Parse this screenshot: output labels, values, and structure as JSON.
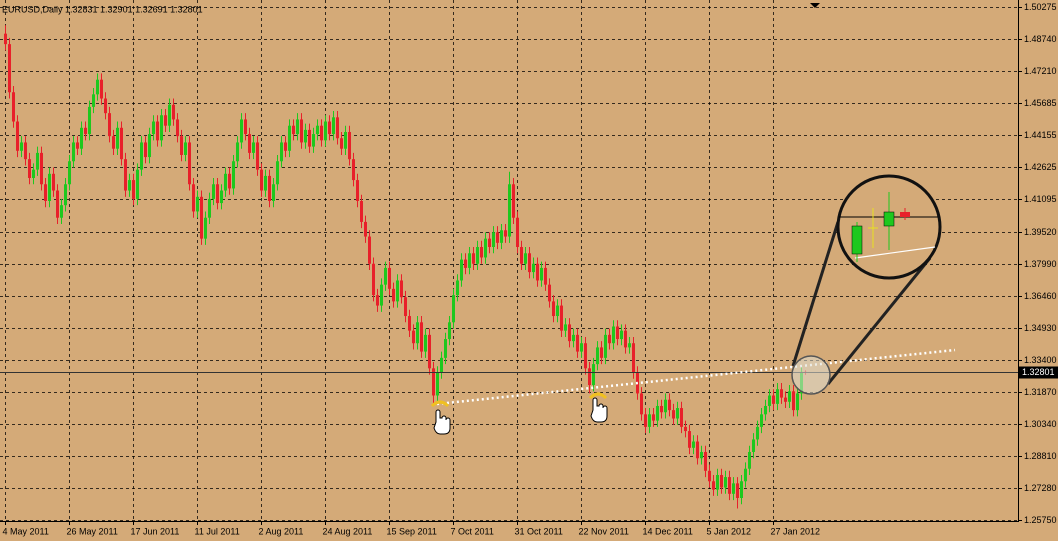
{
  "chart_data": {
    "type": "candlestick",
    "title": "EURUSD,Daily  1.32831 1.32901 1.32691 1.32801",
    "up_color": "#1ec81e",
    "down_color": "#e8202a",
    "grid": true,
    "xlim": [
      -1.25,
      253.25
    ],
    "xticks": [
      {
        "value": 0,
        "label": "4 May 2011"
      },
      {
        "value": 16,
        "label": "26 May 2011"
      },
      {
        "value": 32,
        "label": "17 Jun 2011"
      },
      {
        "value": 48,
        "label": "11 Jul 2011"
      },
      {
        "value": 64,
        "label": "2 Aug 2011"
      },
      {
        "value": 80,
        "label": "24 Aug 2011"
      },
      {
        "value": 96,
        "label": "15 Sep 2011"
      },
      {
        "value": 112,
        "label": "7 Oct 2011"
      },
      {
        "value": 128,
        "label": "31 Oct 2011"
      },
      {
        "value": 144,
        "label": "22 Nov 2011"
      },
      {
        "value": 160,
        "label": "14 Dec 2011"
      },
      {
        "value": 176,
        "label": "5 Jan 2012"
      },
      {
        "value": 192,
        "label": "27 Jan 2012"
      }
    ],
    "ylim": [
      1.257,
      1.5061
    ],
    "yticks": [
      1.50275,
      {
        "value": 1.4874,
        "label": "1.48740"
      },
      {
        "value": 1.4721,
        "label": "1.47210"
      },
      1.45685,
      1.44155,
      1.42625,
      1.41095,
      {
        "value": 1.3952,
        "label": "1.39520"
      },
      {
        "value": 1.3799,
        "label": "1.37990"
      },
      {
        "value": 1.3646,
        "label": "1.36460"
      },
      {
        "value": 1.3493,
        "label": "1.34930"
      },
      {
        "value": 1.334,
        "label": "1.33400"
      },
      {
        "value": 1.3187,
        "label": "1.31870"
      },
      {
        "value": 1.3034,
        "label": "1.30340"
      },
      {
        "value": 1.2881,
        "label": "1.28810"
      },
      {
        "value": 1.2728,
        "label": "1.27280"
      },
      {
        "value": 1.2575,
        "label": "1.25750"
      }
    ],
    "last_price": {
      "value": 1.32801,
      "label": "1.32801"
    },
    "open": [
      1.49,
      1.485,
      1.462,
      1.448,
      1.434,
      1.438,
      1.43,
      1.421,
      1.425,
      1.433,
      1.418,
      1.41,
      1.423,
      1.415,
      1.402,
      1.408,
      1.418,
      1.429,
      1.438,
      1.435,
      1.445,
      1.442,
      1.455,
      1.461,
      1.468,
      1.459,
      1.452,
      1.441,
      1.435,
      1.445,
      1.43,
      1.415,
      1.42,
      1.411,
      1.425,
      1.438,
      1.431,
      1.442,
      1.448,
      1.439,
      1.451,
      1.446,
      1.456,
      1.449,
      1.441,
      1.432,
      1.438,
      1.418,
      1.405,
      1.412,
      1.392,
      1.402,
      1.411,
      1.418,
      1.409,
      1.415,
      1.423,
      1.416,
      1.429,
      1.438,
      1.449,
      1.442,
      1.433,
      1.438,
      1.425,
      1.415,
      1.422,
      1.41,
      1.418,
      1.429,
      1.438,
      1.434,
      1.446,
      1.442,
      1.449,
      1.438,
      1.444,
      1.436,
      1.442,
      1.446,
      1.439,
      1.448,
      1.442,
      1.45,
      1.44,
      1.435,
      1.443,
      1.43,
      1.42,
      1.41,
      1.4,
      1.393,
      1.38,
      1.365,
      1.36,
      1.37,
      1.378,
      1.368,
      1.362,
      1.372,
      1.364,
      1.355,
      1.348,
      1.342,
      1.352,
      1.338,
      1.346,
      1.33,
      1.317,
      1.328,
      1.335,
      1.344,
      1.352,
      1.365,
      1.372,
      1.382,
      1.378,
      1.385,
      1.38,
      1.388,
      1.383,
      1.392,
      1.388,
      1.395,
      1.39,
      1.396,
      1.393,
      1.418,
      1.402,
      1.388,
      1.38,
      1.385,
      1.376,
      1.38,
      1.372,
      1.378,
      1.37,
      1.362,
      1.355,
      1.36,
      1.348,
      1.351,
      1.343,
      1.346,
      1.338,
      1.342,
      1.33,
      1.322,
      1.332,
      1.34,
      1.335,
      1.346,
      1.342,
      1.35,
      1.344,
      1.348,
      1.34,
      1.342,
      1.328,
      1.318,
      1.308,
      1.302,
      1.308,
      1.305,
      1.312,
      1.309,
      1.315,
      1.31,
      1.306,
      1.311,
      1.302,
      1.3,
      1.292,
      1.295,
      1.287,
      1.29,
      1.281,
      1.276,
      1.272,
      1.279,
      1.273,
      1.278,
      1.27,
      1.275,
      1.268,
      1.276,
      1.282,
      1.29,
      1.296,
      1.302,
      1.308,
      1.312,
      1.317,
      1.313,
      1.32,
      1.316,
      1.314,
      1.319,
      1.31,
      1.318,
      1.32831
    ],
    "high": [
      1.494,
      1.488,
      1.465,
      1.451,
      1.441,
      1.441,
      1.433,
      1.428,
      1.436,
      1.436,
      1.421,
      1.426,
      1.426,
      1.418,
      1.411,
      1.421,
      1.432,
      1.441,
      1.441,
      1.448,
      1.448,
      1.458,
      1.464,
      1.471,
      1.471,
      1.462,
      1.455,
      1.444,
      1.448,
      1.448,
      1.433,
      1.423,
      1.423,
      1.428,
      1.441,
      1.441,
      1.445,
      1.451,
      1.451,
      1.454,
      1.454,
      1.459,
      1.459,
      1.452,
      1.444,
      1.441,
      1.441,
      1.421,
      1.415,
      1.415,
      1.405,
      1.414,
      1.421,
      1.421,
      1.418,
      1.426,
      1.426,
      1.432,
      1.441,
      1.452,
      1.452,
      1.445,
      1.441,
      1.441,
      1.428,
      1.425,
      1.425,
      1.421,
      1.432,
      1.441,
      1.441,
      1.449,
      1.449,
      1.452,
      1.452,
      1.447,
      1.447,
      1.445,
      1.449,
      1.449,
      1.451,
      1.451,
      1.453,
      1.453,
      1.443,
      1.446,
      1.446,
      1.433,
      1.423,
      1.413,
      1.403,
      1.396,
      1.383,
      1.368,
      1.373,
      1.381,
      1.381,
      1.371,
      1.375,
      1.375,
      1.367,
      1.358,
      1.351,
      1.355,
      1.355,
      1.349,
      1.349,
      1.333,
      1.331,
      1.338,
      1.347,
      1.355,
      1.368,
      1.375,
      1.385,
      1.385,
      1.388,
      1.388,
      1.391,
      1.391,
      1.395,
      1.395,
      1.398,
      1.398,
      1.399,
      1.399,
      1.424,
      1.421,
      1.405,
      1.391,
      1.388,
      1.388,
      1.383,
      1.383,
      1.381,
      1.381,
      1.373,
      1.365,
      1.363,
      1.363,
      1.354,
      1.354,
      1.349,
      1.349,
      1.345,
      1.345,
      1.333,
      1.335,
      1.343,
      1.343,
      1.349,
      1.349,
      1.353,
      1.353,
      1.351,
      1.351,
      1.345,
      1.345,
      1.331,
      1.321,
      1.311,
      1.311,
      1.311,
      1.315,
      1.315,
      1.318,
      1.318,
      1.313,
      1.314,
      1.314,
      1.305,
      1.303,
      1.298,
      1.298,
      1.293,
      1.293,
      1.284,
      1.279,
      1.282,
      1.282,
      1.281,
      1.281,
      1.278,
      1.278,
      1.279,
      1.285,
      1.293,
      1.299,
      1.305,
      1.311,
      1.315,
      1.32,
      1.32,
      1.323,
      1.323,
      1.319,
      1.322,
      1.322,
      1.321,
      1.3313,
      1.32901
    ],
    "low": [
      1.482,
      1.459,
      1.445,
      1.431,
      1.431,
      1.427,
      1.418,
      1.418,
      1.422,
      1.415,
      1.407,
      1.407,
      1.412,
      1.399,
      1.399,
      1.405,
      1.415,
      1.426,
      1.432,
      1.432,
      1.439,
      1.439,
      1.452,
      1.458,
      1.456,
      1.449,
      1.438,
      1.432,
      1.432,
      1.427,
      1.412,
      1.412,
      1.408,
      1.408,
      1.422,
      1.428,
      1.428,
      1.439,
      1.436,
      1.436,
      1.443,
      1.443,
      1.446,
      1.438,
      1.429,
      1.429,
      1.415,
      1.402,
      1.402,
      1.389,
      1.389,
      1.399,
      1.408,
      1.406,
      1.406,
      1.412,
      1.413,
      1.413,
      1.426,
      1.435,
      1.439,
      1.43,
      1.43,
      1.422,
      1.412,
      1.412,
      1.407,
      1.407,
      1.415,
      1.426,
      1.431,
      1.431,
      1.439,
      1.439,
      1.435,
      1.435,
      1.433,
      1.433,
      1.439,
      1.436,
      1.436,
      1.439,
      1.439,
      1.437,
      1.432,
      1.432,
      1.427,
      1.417,
      1.407,
      1.397,
      1.39,
      1.377,
      1.362,
      1.357,
      1.357,
      1.367,
      1.365,
      1.359,
      1.359,
      1.361,
      1.352,
      1.345,
      1.339,
      1.339,
      1.335,
      1.335,
      1.327,
      1.312,
      1.314,
      1.325,
      1.332,
      1.341,
      1.349,
      1.362,
      1.369,
      1.375,
      1.375,
      1.377,
      1.377,
      1.38,
      1.38,
      1.385,
      1.385,
      1.387,
      1.387,
      1.39,
      1.39,
      1.399,
      1.385,
      1.377,
      1.377,
      1.373,
      1.373,
      1.369,
      1.369,
      1.367,
      1.359,
      1.352,
      1.352,
      1.345,
      1.345,
      1.34,
      1.34,
      1.335,
      1.335,
      1.327,
      1.318,
      1.319,
      1.329,
      1.332,
      1.332,
      1.339,
      1.339,
      1.341,
      1.341,
      1.337,
      1.337,
      1.325,
      1.315,
      1.305,
      1.299,
      1.299,
      1.302,
      1.302,
      1.306,
      1.306,
      1.307,
      1.303,
      1.303,
      1.299,
      1.297,
      1.289,
      1.289,
      1.284,
      1.284,
      1.278,
      1.273,
      1.269,
      1.269,
      1.27,
      1.27,
      1.267,
      1.267,
      1.263,
      1.265,
      1.273,
      1.279,
      1.287,
      1.293,
      1.299,
      1.305,
      1.309,
      1.31,
      1.31,
      1.313,
      1.311,
      1.311,
      1.307,
      1.307,
      1.315,
      1.32691
    ],
    "close": [
      1.485,
      1.462,
      1.448,
      1.434,
      1.438,
      1.43,
      1.421,
      1.425,
      1.433,
      1.418,
      1.41,
      1.423,
      1.415,
      1.402,
      1.408,
      1.418,
      1.429,
      1.438,
      1.435,
      1.445,
      1.442,
      1.455,
      1.461,
      1.468,
      1.459,
      1.452,
      1.441,
      1.435,
      1.445,
      1.43,
      1.415,
      1.42,
      1.411,
      1.425,
      1.438,
      1.431,
      1.442,
      1.448,
      1.439,
      1.451,
      1.446,
      1.456,
      1.449,
      1.441,
      1.432,
      1.438,
      1.418,
      1.405,
      1.412,
      1.392,
      1.402,
      1.411,
      1.418,
      1.409,
      1.415,
      1.423,
      1.416,
      1.429,
      1.438,
      1.449,
      1.442,
      1.433,
      1.438,
      1.425,
      1.415,
      1.422,
      1.41,
      1.418,
      1.429,
      1.438,
      1.434,
      1.446,
      1.442,
      1.449,
      1.438,
      1.444,
      1.436,
      1.442,
      1.446,
      1.439,
      1.448,
      1.442,
      1.45,
      1.44,
      1.435,
      1.443,
      1.43,
      1.42,
      1.41,
      1.4,
      1.393,
      1.38,
      1.365,
      1.36,
      1.37,
      1.378,
      1.368,
      1.362,
      1.372,
      1.364,
      1.355,
      1.348,
      1.342,
      1.352,
      1.338,
      1.346,
      1.33,
      1.317,
      1.328,
      1.335,
      1.344,
      1.352,
      1.365,
      1.372,
      1.382,
      1.378,
      1.385,
      1.38,
      1.388,
      1.383,
      1.392,
      1.388,
      1.395,
      1.39,
      1.396,
      1.393,
      1.418,
      1.402,
      1.388,
      1.38,
      1.385,
      1.376,
      1.38,
      1.372,
      1.378,
      1.37,
      1.362,
      1.355,
      1.36,
      1.348,
      1.351,
      1.343,
      1.346,
      1.338,
      1.342,
      1.33,
      1.322,
      1.332,
      1.34,
      1.335,
      1.346,
      1.342,
      1.35,
      1.344,
      1.348,
      1.34,
      1.342,
      1.328,
      1.318,
      1.308,
      1.302,
      1.308,
      1.305,
      1.312,
      1.309,
      1.315,
      1.31,
      1.306,
      1.311,
      1.302,
      1.3,
      1.292,
      1.295,
      1.287,
      1.29,
      1.281,
      1.276,
      1.272,
      1.279,
      1.273,
      1.278,
      1.27,
      1.275,
      1.268,
      1.276,
      1.282,
      1.29,
      1.296,
      1.302,
      1.308,
      1.312,
      1.317,
      1.313,
      1.32,
      1.316,
      1.314,
      1.319,
      1.31,
      1.318,
      1.32831,
      1.32801
    ]
  }
}
